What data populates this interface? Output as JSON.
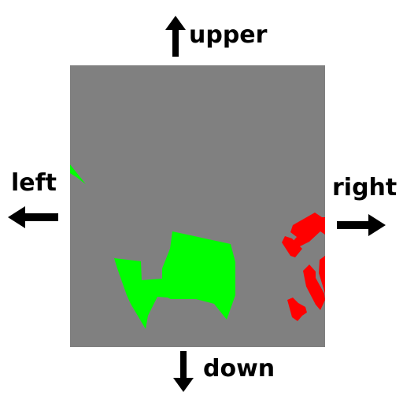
{
  "navigation": {
    "up_label": "upper",
    "left_label": "left",
    "right_label": "right",
    "down_label": "down"
  },
  "arrow_icons": {
    "up": "arrow-up-icon",
    "left": "arrow-left-icon",
    "right": "arrow-right-icon",
    "down": "arrow-down-icon"
  },
  "map": {
    "background_color": "#808080",
    "region_colors": {
      "green": "#00ff00",
      "red": "#ff0000"
    }
  }
}
